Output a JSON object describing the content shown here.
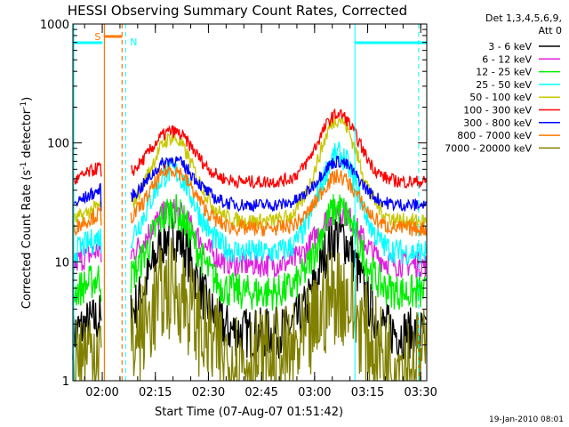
{
  "chart_data": {
    "type": "line",
    "title": "HESSI Observing Summary Count Rates, Corrected",
    "xlabel": "Start Time (07-Aug-07 01:51:42)",
    "ylabel_parts": {
      "pre": "Corrected Count Rate (s",
      "sup1": "-1",
      "mid": " detector",
      "sup2": "-1",
      "post": ")"
    },
    "yscale": "log",
    "ylim": [
      1,
      1000
    ],
    "xlim_minutes": [
      0,
      100
    ],
    "x_ticks": [
      {
        "minute": 8.3,
        "label": "02:00"
      },
      {
        "minute": 23.3,
        "label": "02:15"
      },
      {
        "minute": 38.3,
        "label": "02:30"
      },
      {
        "minute": 53.3,
        "label": "02:45"
      },
      {
        "minute": 68.3,
        "label": "03:00"
      },
      {
        "minute": 83.3,
        "label": "03:15"
      },
      {
        "minute": 98.3,
        "label": "03:30"
      }
    ],
    "y_ticks": [
      {
        "value": 1,
        "label": "1"
      },
      {
        "value": 10,
        "label": "10"
      },
      {
        "value": 100,
        "label": "100"
      },
      {
        "value": 1000,
        "label": "1000"
      }
    ],
    "legend_header": [
      "Det 1,3,4,5,6,9,",
      "Att 0"
    ],
    "legend_placement": "right",
    "series": [
      {
        "name": "3 - 6 keV",
        "color": "#000000",
        "baseline": 2.5,
        "peak1": 17,
        "peak2": 17,
        "noise": 0.1
      },
      {
        "name": "6 - 12 keV",
        "color": "#e020e0",
        "baseline": 9.5,
        "peak1": 27,
        "peak2": 27,
        "noise": 0.05
      },
      {
        "name": "12 - 25 keV",
        "color": "#00ee00",
        "baseline": 5.5,
        "peak1": 27,
        "peak2": 28,
        "noise": 0.07
      },
      {
        "name": "25 - 50 keV",
        "color": "#00ffff",
        "baseline": 12,
        "peak1": 58,
        "peak2": 80,
        "noise": 0.05
      },
      {
        "name": "50 - 100 keV",
        "color": "#c8c800",
        "baseline": 22,
        "peak1": 110,
        "peak2": 160,
        "noise": 0.03
      },
      {
        "name": "100 - 300 keV",
        "color": "#ff0000",
        "baseline": 47,
        "peak1": 125,
        "peak2": 175,
        "noise": 0.025
      },
      {
        "name": "300 - 800 keV",
        "color": "#0000ff",
        "baseline": 30,
        "peak1": 72,
        "peak2": 70,
        "noise": 0.025
      },
      {
        "name": "800 - 7000 keV",
        "color": "#ff7700",
        "baseline": 19,
        "peak1": 60,
        "peak2": 52,
        "noise": 0.03
      },
      {
        "name": "7000 - 20000 keV",
        "color": "#808000",
        "baseline": 1.5,
        "peak1": 6,
        "peak2": 5.5,
        "noise": 0.2
      }
    ],
    "saa_label": "S",
    "night_label": "N",
    "timestamp": "19-Jan-2010 08:01"
  },
  "colors": {
    "frame": "#000000",
    "saa": "#ff7700",
    "night": "#00ffff"
  }
}
